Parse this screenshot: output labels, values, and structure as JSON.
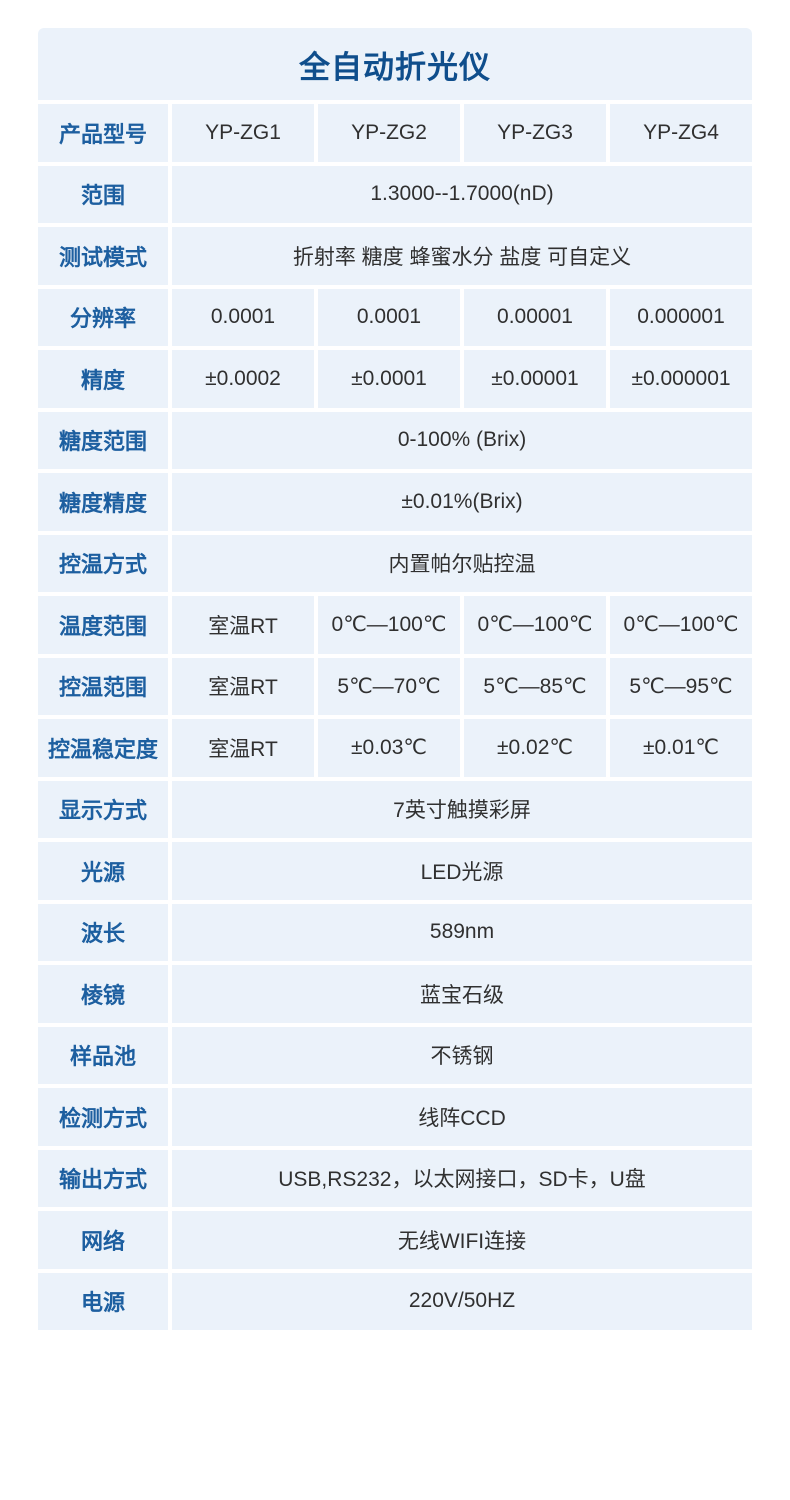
{
  "page": {
    "title": "全自动折光仪",
    "colors": {
      "title_color": "#0f4e8c",
      "label_color": "#1d5fa0",
      "value_color": "#303030",
      "cell_bg": "#ebf2fa",
      "page_bg": "#ffffff"
    }
  },
  "table": {
    "rows": [
      {
        "label": "产品型号",
        "values": [
          "YP-ZG1",
          "YP-ZG2",
          "YP-ZG3",
          "YP-ZG4"
        ]
      },
      {
        "label": "范围",
        "values": [
          "1.3000--1.7000(nD)"
        ]
      },
      {
        "label": "测试模式",
        "values": [
          "折射率 糖度 蜂蜜水分 盐度 可自定义"
        ]
      },
      {
        "label": "分辨率",
        "values": [
          "0.0001",
          "0.0001",
          "0.00001",
          "0.000001"
        ]
      },
      {
        "label": "精度",
        "values": [
          "±0.0002",
          "±0.0001",
          "±0.00001",
          "±0.000001"
        ]
      },
      {
        "label": "糖度范围",
        "values": [
          "0-100% (Brix)"
        ]
      },
      {
        "label": "糖度精度",
        "values": [
          "±0.01%(Brix)"
        ]
      },
      {
        "label": "控温方式",
        "values": [
          "内置帕尔贴控温"
        ]
      },
      {
        "label": "温度范围",
        "values": [
          "室温RT",
          "0℃—100℃",
          "0℃—100℃",
          "0℃—100℃"
        ]
      },
      {
        "label": "控温范围",
        "values": [
          "室温RT",
          "5℃—70℃",
          "5℃—85℃",
          "5℃—95℃"
        ]
      },
      {
        "label": "控温稳定度",
        "values": [
          "室温RT",
          "±0.03℃",
          "±0.02℃",
          "±0.01℃"
        ]
      },
      {
        "label": "显示方式",
        "values": [
          "7英寸触摸彩屏"
        ]
      },
      {
        "label": "光源",
        "values": [
          "LED光源"
        ]
      },
      {
        "label": "波长",
        "values": [
          "589nm"
        ]
      },
      {
        "label": "棱镜",
        "values": [
          "蓝宝石级"
        ]
      },
      {
        "label": "样品池",
        "values": [
          "不锈钢"
        ]
      },
      {
        "label": "检测方式",
        "values": [
          "线阵CCD"
        ]
      },
      {
        "label": "输出方式",
        "values": [
          "USB,RS232，以太网接口，SD卡，U盘"
        ]
      },
      {
        "label": "网络",
        "values": [
          "无线WIFI连接"
        ]
      },
      {
        "label": "电源",
        "values": [
          "220V/50HZ"
        ]
      }
    ]
  }
}
